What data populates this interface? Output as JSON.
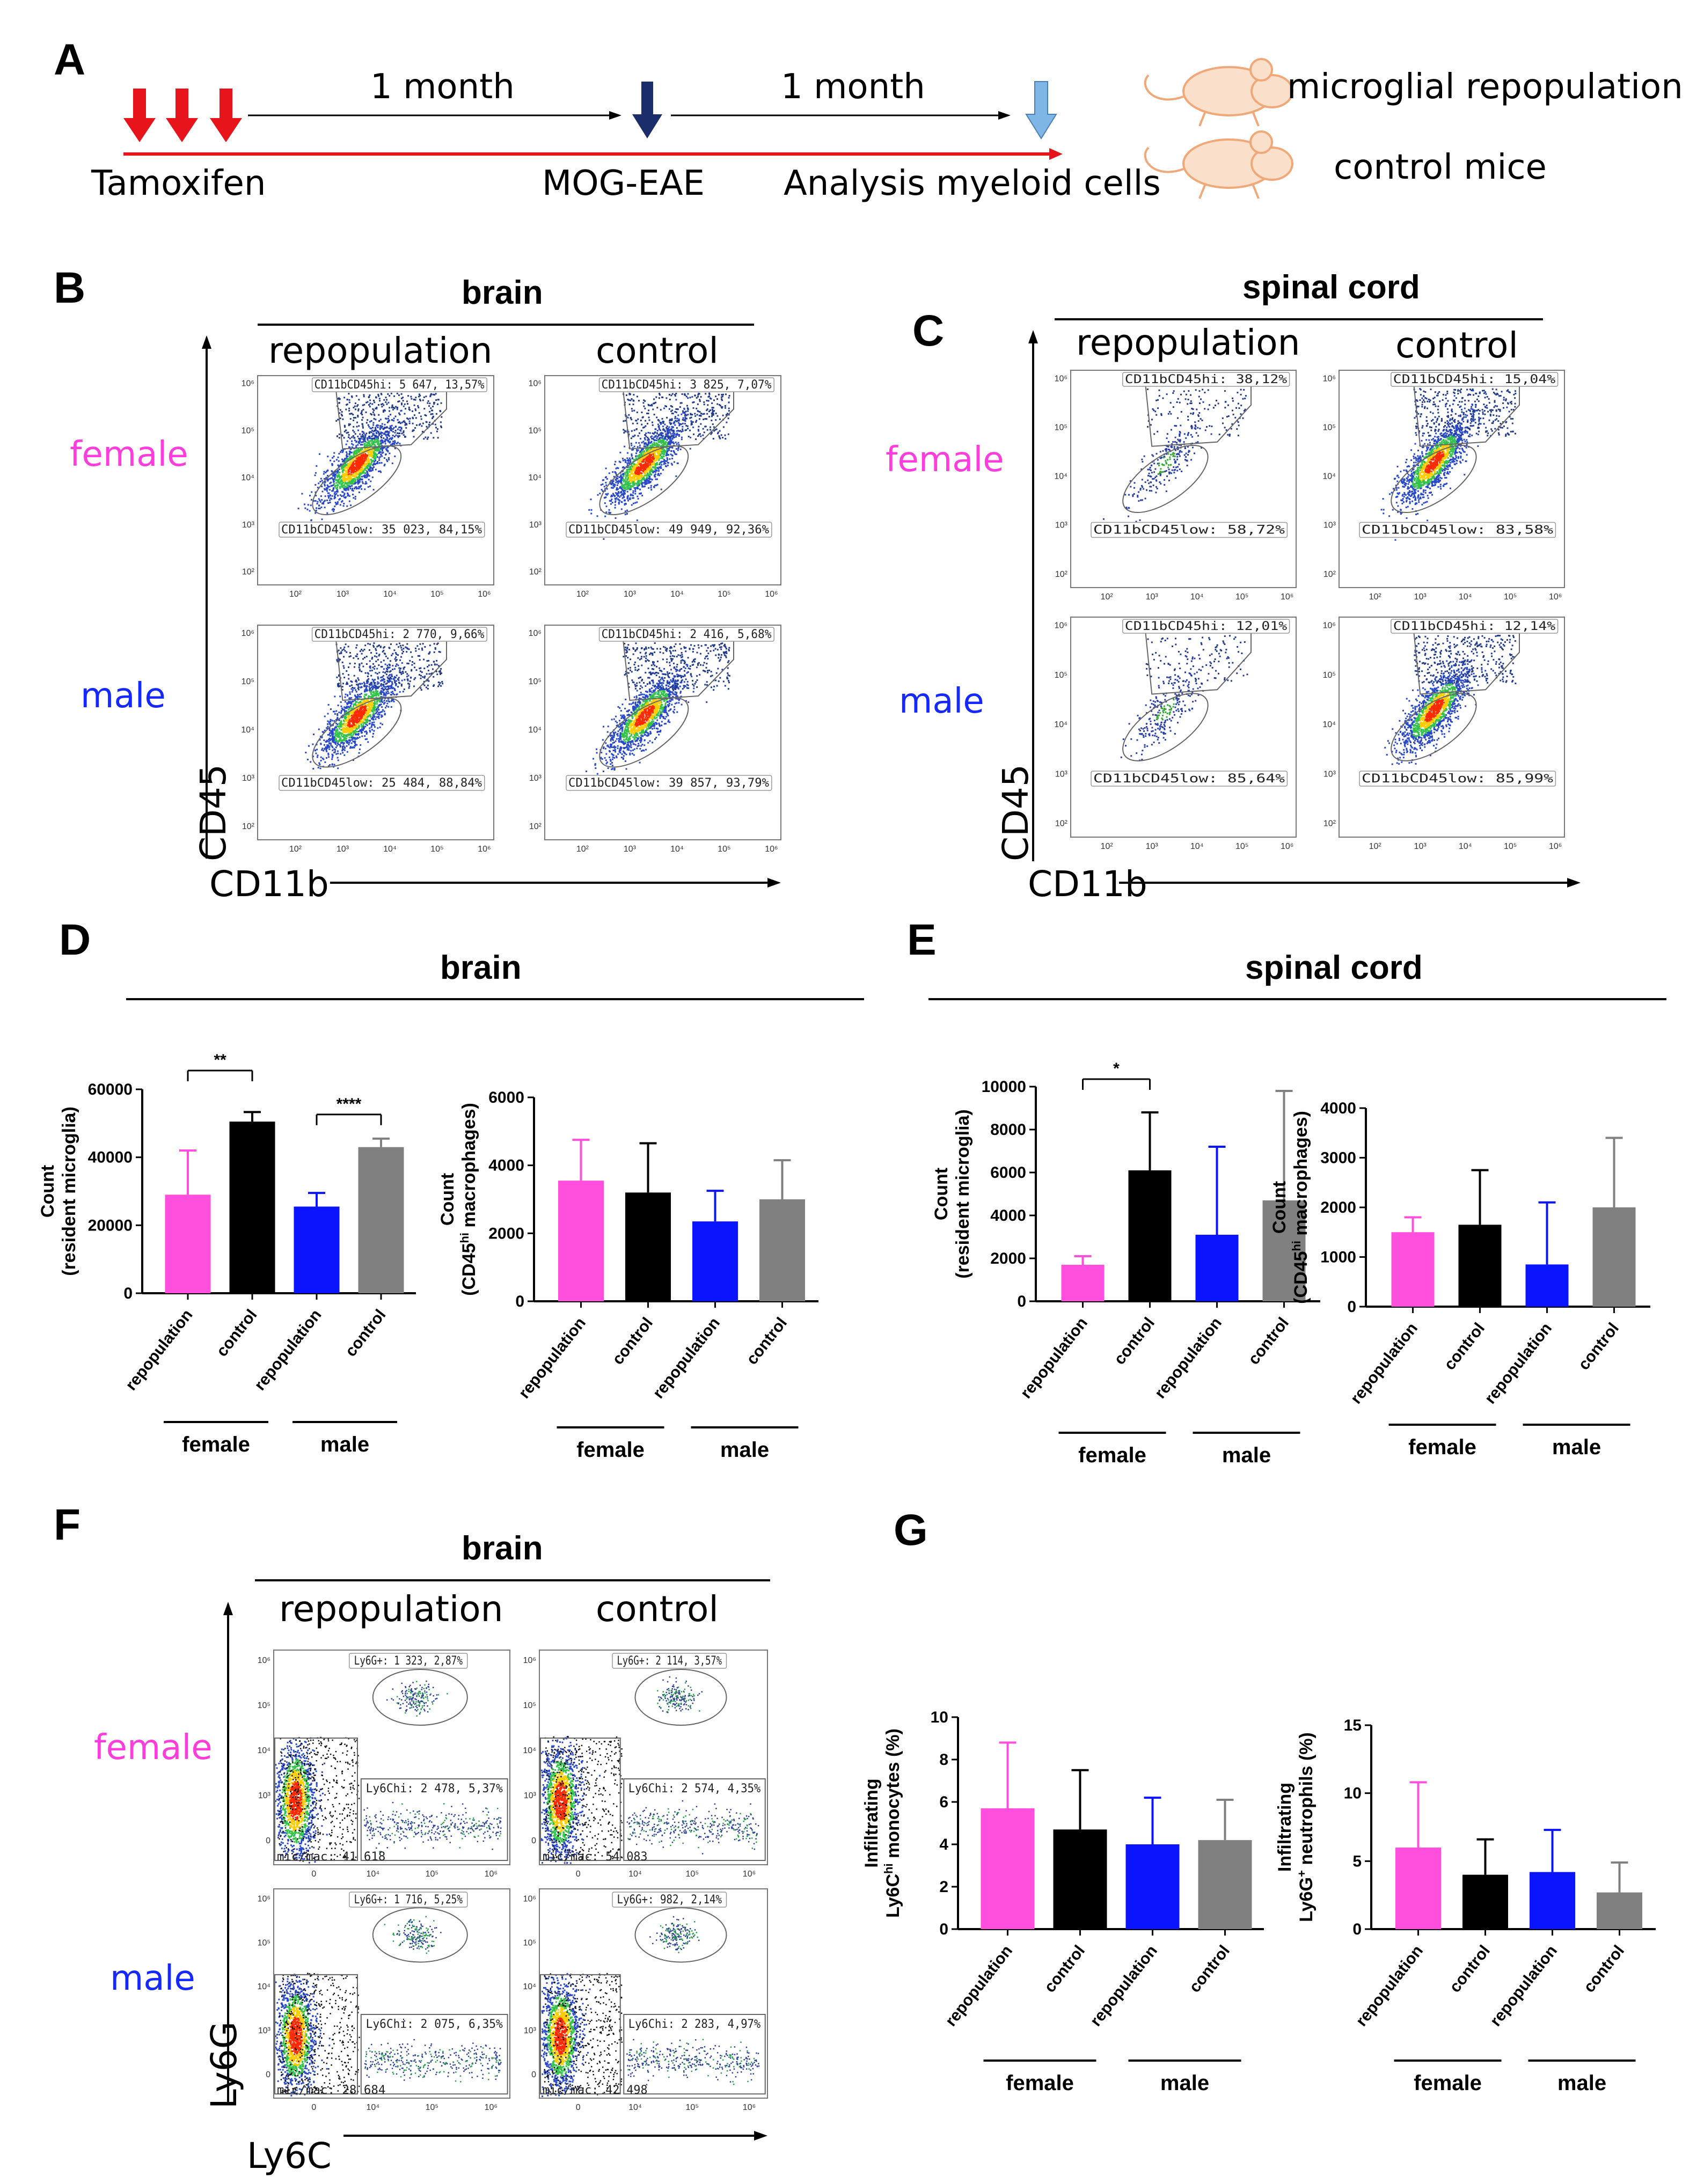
{
  "panel_labels": {
    "A": "A",
    "B": "B",
    "C": "C",
    "D": "D",
    "E": "E",
    "F": "F",
    "G": "G"
  },
  "panelA": {
    "interval1": "1 month",
    "interval2": "1 month",
    "tamoxifen": "Tamoxifen",
    "eae": "MOG-EAE",
    "analysis": "Analysis myeloid cells",
    "legend_repop": "microglial repopulation",
    "legend_control": "control mice",
    "colors": {
      "tamoxifen_arrow": "#e8141b",
      "eae_arrow": "#1c2d6b",
      "analysis_arrow": "#7fb6e6",
      "timeline": "#e8141b",
      "mouse": "#f2c7a5"
    }
  },
  "panelB": {
    "title": "brain",
    "col_repop": "repopulation",
    "col_control": "control",
    "row_female": "female",
    "row_male": "male",
    "yaxis": "CD45",
    "xaxis": "CD11b",
    "gates": {
      "female_repop": {
        "hi": "CD11bCD45hi: 5 647, 13,57%",
        "low": "CD11bCD45low: 35 023, 84,15%"
      },
      "female_control": {
        "hi": "CD11bCD45hi: 3 825, 7,07%",
        "low": "CD11bCD45low: 49 949, 92,36%"
      },
      "male_repop": {
        "hi": "CD11bCD45hi: 2 770, 9,66%",
        "low": "CD11bCD45low: 25 484, 88,84%"
      },
      "male_control": {
        "hi": "CD11bCD45hi: 2 416, 5,68%",
        "low": "CD11bCD45low: 39 857, 93,79%"
      }
    }
  },
  "panelC": {
    "title": "spinal cord",
    "col_repop": "repopulation",
    "col_control": "control",
    "row_female": "female",
    "row_male": "male",
    "yaxis": "CD45",
    "xaxis": "CD11b",
    "gates": {
      "female_repop": {
        "hi": "CD11bCD45hi: 38,12%",
        "low": "CD11bCD45low: 58,72%"
      },
      "female_control": {
        "hi": "CD11bCD45hi: 15,04%",
        "low": "CD11bCD45low: 83,58%"
      },
      "male_repop": {
        "hi": "CD11bCD45hi: 12,01%",
        "low": "CD11bCD45low: 85,64%"
      },
      "male_control": {
        "hi": "CD11bCD45hi: 12,14%",
        "low": "CD11bCD45low: 85,99%"
      }
    }
  },
  "panelF": {
    "title": "brain",
    "col_repop": "repopulation",
    "col_control": "control",
    "row_female": "female",
    "row_male": "male",
    "yaxis": "Ly6G",
    "xaxis": "Ly6C",
    "gates": {
      "female_repop": {
        "ly6g": "Ly6G+: 1 323, 2,87%",
        "ly6c": "Ly6Chi: 2 478, 5,37%",
        "micmac": "mic/mac: 41 618"
      },
      "female_control": {
        "ly6g": "Ly6G+: 2 114, 3,57%",
        "ly6c": "Ly6Chi: 2 574, 4,35%",
        "micmac": "mic/mac: 54 083"
      },
      "male_repop": {
        "ly6g": "Ly6G+: 1 716, 5,25%",
        "ly6c": "Ly6Chi: 2 075, 6,35%",
        "micmac": "mic/mac: 28 684"
      },
      "male_control": {
        "ly6g": "Ly6G+: 982, 2,14%",
        "ly6c": "Ly6Chi: 2 283, 4,97%",
        "micmac": "mic/mac: 42 498"
      }
    }
  },
  "flow_ticks": {
    "x": [
      "10²",
      "10³",
      "10⁴",
      "10⁵",
      "10⁶"
    ],
    "y": [
      "10²",
      "10³",
      "10⁴",
      "10⁵",
      "10⁶"
    ],
    "fx": [
      "0",
      "10⁴",
      "10⁵",
      "10⁶"
    ],
    "fy": [
      "0",
      "10³",
      "10⁴",
      "10⁵",
      "10⁶"
    ]
  },
  "section_titles": {
    "D": "brain",
    "E": "spinal cord"
  },
  "chart_data": [
    {
      "id": "D1",
      "type": "bar",
      "title": "",
      "ylabel": "Count (resident microglia)",
      "ylim": [
        0,
        60000
      ],
      "yticks": [
        0,
        20000,
        40000,
        60000
      ],
      "categories": [
        "repopulation",
        "control",
        "repopulation",
        "control"
      ],
      "groups": [
        "female",
        "male"
      ],
      "values": [
        29000,
        50500,
        25500,
        43000
      ],
      "errors": [
        13000,
        2800,
        4000,
        2500
      ],
      "colors": [
        "#ff4fdc",
        "#000000",
        "#0a14ff",
        "#808080"
      ],
      "annotations": [
        {
          "label": "**",
          "from": 0,
          "to": 1
        },
        {
          "label": "****",
          "from": 2,
          "to": 3
        }
      ]
    },
    {
      "id": "D2",
      "type": "bar",
      "title": "",
      "ylabel": "Count (CD45hi macrophages)",
      "ylabel_main": "Count",
      "ylabel_pre": "(CD45",
      "ylabel_sup": "hi",
      "ylabel_post": " macrophages)",
      "ylim": [
        0,
        6000
      ],
      "yticks": [
        0,
        2000,
        4000,
        6000
      ],
      "categories": [
        "repopulation",
        "control",
        "repopulation",
        "control"
      ],
      "groups": [
        "female",
        "male"
      ],
      "values": [
        3550,
        3200,
        2350,
        3000
      ],
      "errors": [
        1200,
        1450,
        900,
        1150
      ],
      "colors": [
        "#ff4fdc",
        "#000000",
        "#0a14ff",
        "#808080"
      ],
      "annotations": []
    },
    {
      "id": "E1",
      "type": "bar",
      "title": "",
      "ylabel": "Count (resident microglia)",
      "ylim": [
        0,
        10000
      ],
      "yticks": [
        0,
        2000,
        4000,
        6000,
        8000,
        10000
      ],
      "categories": [
        "repopulation",
        "control",
        "repopulation",
        "control"
      ],
      "groups": [
        "female",
        "male"
      ],
      "values": [
        1700,
        6100,
        3100,
        4700
      ],
      "errors": [
        400,
        2700,
        4100,
        5100
      ],
      "colors": [
        "#ff4fdc",
        "#000000",
        "#0a14ff",
        "#808080"
      ],
      "annotations": [
        {
          "label": "*",
          "from": 0,
          "to": 1
        }
      ]
    },
    {
      "id": "E2",
      "type": "bar",
      "title": "",
      "ylabel": "Count (CD45hi macrophages)",
      "ylabel_main": "Count",
      "ylabel_pre": "(CD45",
      "ylabel_sup": "hi",
      "ylabel_post": " macrophages)",
      "ylim": [
        0,
        4000
      ],
      "yticks": [
        0,
        1000,
        2000,
        3000,
        4000
      ],
      "categories": [
        "repopulation",
        "control",
        "repopulation",
        "control"
      ],
      "groups": [
        "female",
        "male"
      ],
      "values": [
        1500,
        1650,
        850,
        2000
      ],
      "errors": [
        300,
        1100,
        1250,
        1400
      ],
      "colors": [
        "#ff4fdc",
        "#000000",
        "#0a14ff",
        "#808080"
      ],
      "annotations": []
    },
    {
      "id": "G1",
      "type": "bar",
      "title": "",
      "ylabel": "Infiltrating Ly6Chi monocytes (%)",
      "ylabel_main": "Infiltrating",
      "ylabel_pre": "Ly6C",
      "ylabel_sup": "hi",
      "ylabel_post": " monocytes (%)",
      "ylim": [
        0,
        10
      ],
      "yticks": [
        0,
        2,
        4,
        6,
        8,
        10
      ],
      "categories": [
        "repopulation",
        "control",
        "repopulation",
        "control"
      ],
      "groups": [
        "female",
        "male"
      ],
      "values": [
        5.7,
        4.7,
        4.0,
        4.2
      ],
      "errors": [
        3.1,
        2.8,
        2.2,
        1.9
      ],
      "colors": [
        "#ff4fdc",
        "#000000",
        "#0a14ff",
        "#808080"
      ],
      "annotations": []
    },
    {
      "id": "G2",
      "type": "bar",
      "title": "",
      "ylabel": "Infiltrating Ly6G+ neutrophils (%)",
      "ylabel_main": "Infiltrating",
      "ylabel_pre": "Ly6G",
      "ylabel_sup": "+",
      "ylabel_post": " neutrophils (%)",
      "ylim": [
        0,
        15
      ],
      "yticks": [
        0,
        5,
        10,
        15
      ],
      "categories": [
        "repopulation",
        "control",
        "repopulation",
        "control"
      ],
      "groups": [
        "female",
        "male"
      ],
      "values": [
        6.0,
        4.0,
        4.2,
        2.7
      ],
      "errors": [
        4.8,
        2.6,
        3.1,
        2.2
      ],
      "colors": [
        "#ff4fdc",
        "#000000",
        "#0a14ff",
        "#808080"
      ],
      "annotations": []
    }
  ],
  "colors": {
    "female": "#ff3ddd",
    "male": "#1428ff"
  }
}
